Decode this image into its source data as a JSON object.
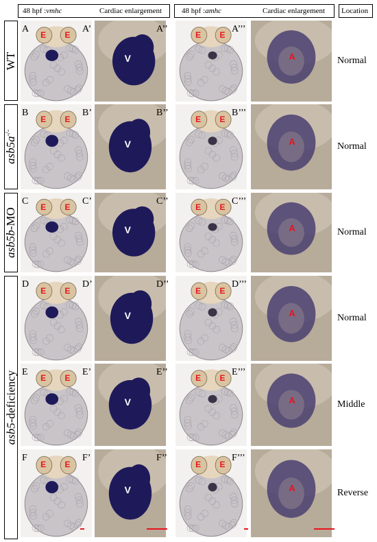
{
  "header": {
    "vmhc_title": "48 hpf :",
    "vmhc_gene": "vmhc",
    "cardiac_1": "Cardiac enlargement",
    "amhc_title": "48 hpf :",
    "amhc_gene": "amhc",
    "cardiac_2": "Cardiac enlargement",
    "location": "Location"
  },
  "row_labels": {
    "wt": "WT",
    "asb5a": "asb5a",
    "asb5a_sup": "-/-",
    "asb5b_gene": "asb5b",
    "asb5b_suffix": "-MO",
    "asb5_gene": "asb5",
    "asb5_suffix": "-deficiency"
  },
  "marks": {
    "eye": "E",
    "ventricle": "V",
    "atrium": "A"
  },
  "rows": [
    {
      "id": "A",
      "labels": [
        "A",
        "A’",
        "A’’",
        "A’’’"
      ],
      "location": "Normal"
    },
    {
      "id": "B",
      "labels": [
        "B",
        "B’",
        "B’’",
        "B’’’"
      ],
      "location": "Normal"
    },
    {
      "id": "C",
      "labels": [
        "C",
        "C’",
        "C’’",
        "C’’’"
      ],
      "location": "Normal"
    },
    {
      "id": "D",
      "labels": [
        "D",
        "D’",
        "D’’",
        "D’’’"
      ],
      "location": "Normal"
    },
    {
      "id": "E",
      "labels": [
        "E",
        "E’",
        "E’’",
        "E’’’"
      ],
      "location": "Middle"
    },
    {
      "id": "F",
      "labels": [
        "F",
        "F’",
        "F’’",
        "F’’’"
      ],
      "location": "Reverse"
    }
  ],
  "colors": {
    "stain": "#1e1a5a",
    "label_red": "#e8141c",
    "yolk": "#c9c4c8",
    "bg_enlarge": "#b7ab9a"
  }
}
